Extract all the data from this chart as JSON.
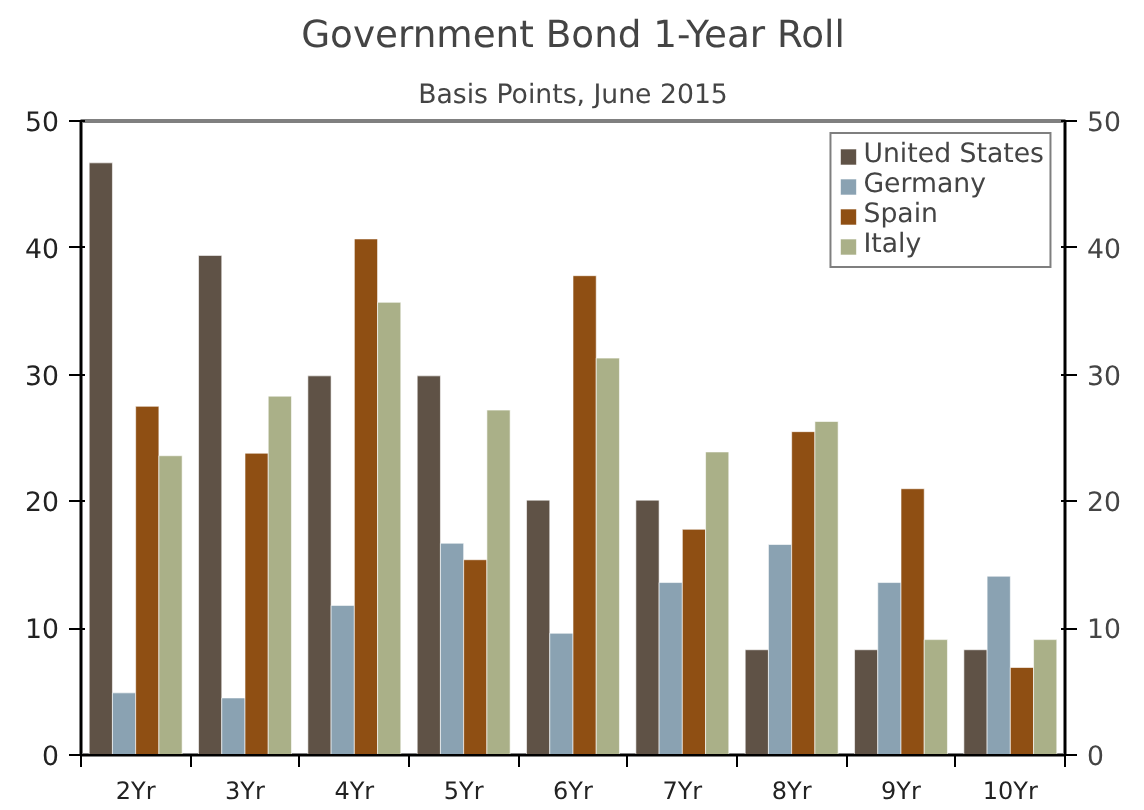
{
  "chart_data": {
    "type": "bar",
    "title": "Government Bond 1-Year Roll",
    "subtitle": "Basis Points, June 2015",
    "categories": [
      "2Yr",
      "3Yr",
      "4Yr",
      "5Yr",
      "6Yr",
      "7Yr",
      "8Yr",
      "9Yr",
      "10Yr"
    ],
    "series": [
      {
        "name": "United States",
        "color": "#5f5246",
        "values": [
          46.7,
          39.4,
          29.9,
          29.9,
          20.1,
          20.1,
          8.3,
          8.3,
          8.3
        ]
      },
      {
        "name": "Germany",
        "color": "#8aa2b2",
        "values": [
          4.9,
          4.5,
          11.8,
          16.7,
          9.6,
          13.6,
          16.6,
          13.6,
          14.1
        ]
      },
      {
        "name": "Spain",
        "color": "#8f4f13",
        "values": [
          27.5,
          23.8,
          40.7,
          15.4,
          37.8,
          17.8,
          25.5,
          21.0,
          6.9
        ]
      },
      {
        "name": "Italy",
        "color": "#aab088",
        "values": [
          23.6,
          28.3,
          35.7,
          27.2,
          31.3,
          23.9,
          26.3,
          9.1,
          9.1
        ]
      }
    ],
    "ylim": [
      0,
      50
    ],
    "yticks": [
      0,
      10,
      20,
      30,
      40,
      50
    ],
    "y2lim": [
      0,
      50
    ],
    "y2ticks": [
      0,
      10,
      20,
      30,
      40,
      50
    ],
    "grid": false,
    "legend": "top right"
  }
}
